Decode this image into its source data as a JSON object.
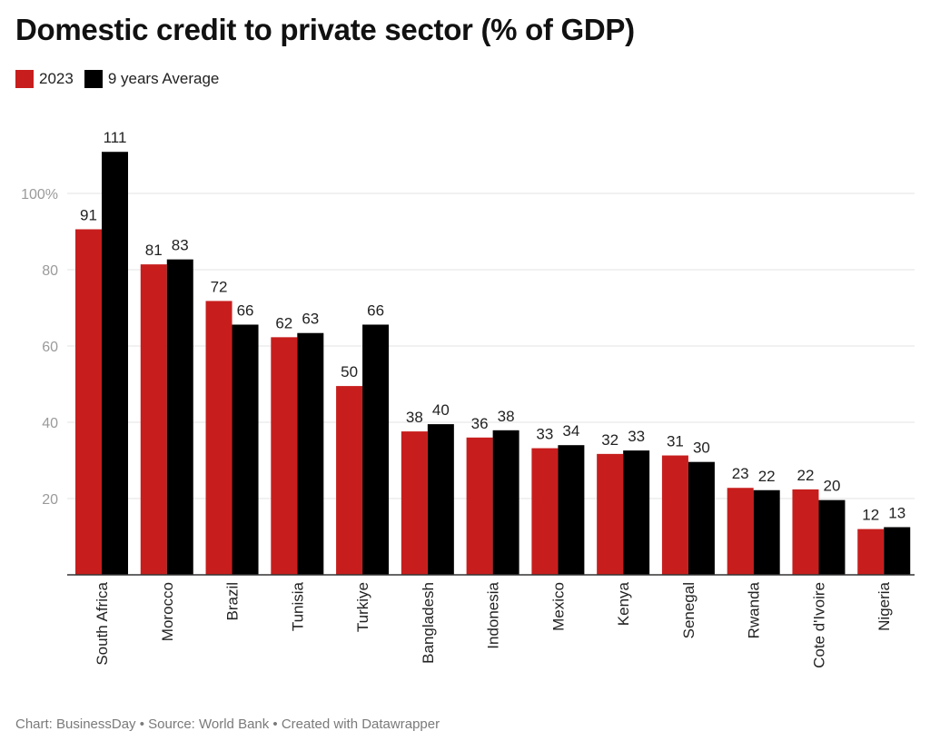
{
  "title": "Domestic credit to private sector (% of GDP)",
  "legend": [
    {
      "label": "2023",
      "color": "#c71e1d"
    },
    {
      "label": "9 years Average",
      "color": "#000000"
    }
  ],
  "footer": "Chart: BusinessDay • Source: World Bank • Created with Datawrapper",
  "chart_data": {
    "type": "bar",
    "title": "Domestic credit to private sector (% of GDP)",
    "categories": [
      "South Africa",
      "Morocco",
      "Brazil",
      "Tunisia",
      "Turkiye",
      "Bangladesh",
      "Indonesia",
      "Mexico",
      "Kenya",
      "Senegal",
      "Rwanda",
      "Cote d'Ivoire",
      "Nigeria"
    ],
    "series": [
      {
        "name": "2023",
        "color": "#c71e1d",
        "values": [
          90.6,
          81.4,
          71.8,
          62.3,
          49.5,
          37.6,
          36.0,
          33.2,
          31.7,
          31.3,
          22.8,
          22.4,
          12.0
        ],
        "labels": [
          "91",
          "81",
          "72",
          "62",
          "50",
          "38",
          "36",
          "33",
          "32",
          "31",
          "23",
          "22",
          "12"
        ]
      },
      {
        "name": "9 years Average",
        "color": "#000000",
        "values": [
          110.9,
          82.7,
          65.6,
          63.4,
          65.6,
          39.5,
          37.9,
          34.0,
          32.6,
          29.6,
          22.2,
          19.6,
          12.5
        ],
        "labels": [
          "111",
          "83",
          "66",
          "63",
          "66",
          "40",
          "38",
          "34",
          "33",
          "30",
          "22",
          "20",
          "13"
        ]
      }
    ],
    "yticks": [
      20,
      40,
      60,
      80,
      100
    ],
    "ytick_labels": [
      "20",
      "40",
      "60",
      "80",
      "100%"
    ],
    "ylim": [
      0,
      120
    ],
    "grid": true,
    "legend_position": "top-left"
  }
}
